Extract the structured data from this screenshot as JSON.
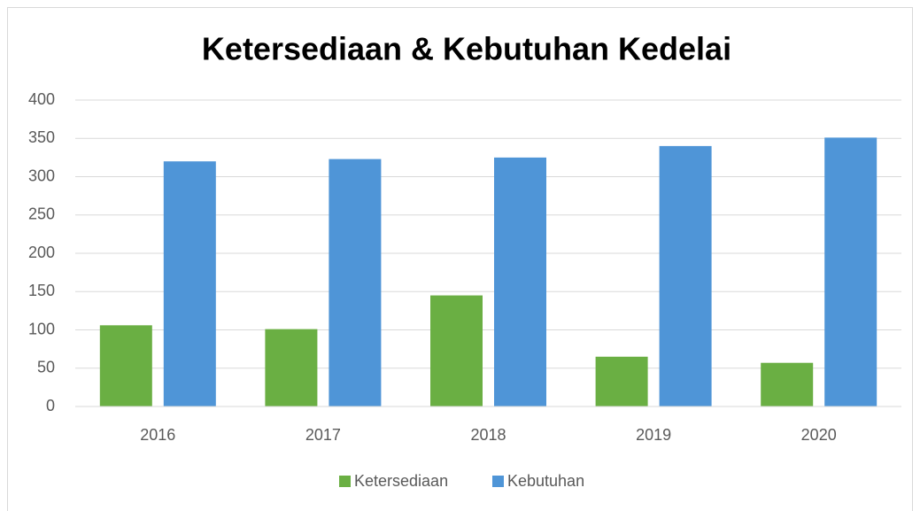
{
  "chart_data": {
    "type": "bar",
    "title": "Ketersediaan & Kebutuhan Kedelai",
    "categories": [
      "2016",
      "2017",
      "2018",
      "2019",
      "2020"
    ],
    "series": [
      {
        "name": "Ketersediaan",
        "color": "#6aaf43",
        "values": [
          106,
          101,
          145,
          65,
          57
        ]
      },
      {
        "name": "Kebutuhan",
        "color": "#4f95d7",
        "values": [
          320,
          323,
          325,
          340,
          351
        ]
      }
    ],
    "ylim": [
      0,
      400
    ],
    "yticks": [
      0,
      50,
      100,
      150,
      200,
      250,
      300,
      350,
      400
    ],
    "grid": true,
    "legend": "bottom"
  }
}
